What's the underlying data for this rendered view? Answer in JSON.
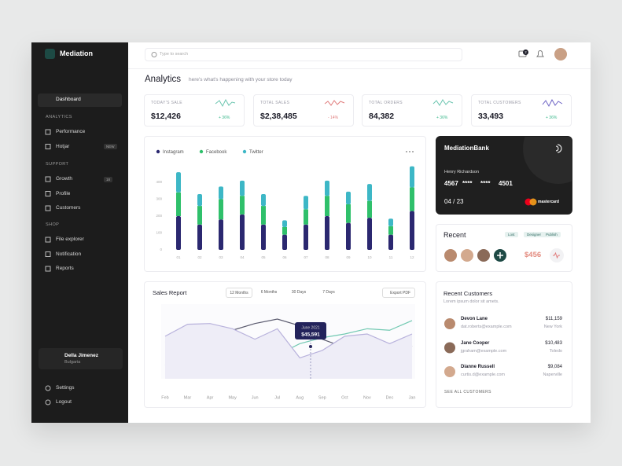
{
  "sidebar": {
    "brand": "Mediation",
    "dashboard": "Dashboard",
    "sections": [
      {
        "title": "ANALYTICS",
        "items": [
          {
            "label": "Performance"
          },
          {
            "label": "Hotjar",
            "badge": "NEW"
          }
        ]
      },
      {
        "title": "SUPPORT",
        "items": [
          {
            "label": "Growth",
            "badge": "18"
          },
          {
            "label": "Profile"
          },
          {
            "label": "Customers"
          }
        ]
      },
      {
        "title": "SHOP",
        "items": [
          {
            "label": "File explorer"
          },
          {
            "label": "Notification"
          },
          {
            "label": "Reports"
          }
        ]
      }
    ],
    "user": {
      "name": "Della Jimenez",
      "location": "Bulgaria"
    },
    "footer": [
      "Settings",
      "Logout"
    ]
  },
  "topbar": {
    "search_placeholder": "Type to search",
    "notifications": 2
  },
  "header": {
    "title": "Analytics",
    "subtitle": "here's what's happening with your store today"
  },
  "stats": [
    {
      "label": "TODAY'S SALE",
      "value": "$12,426",
      "change": "+ 36%"
    },
    {
      "label": "TOTAL SALES",
      "value": "$2,38,485",
      "change": "- 14%"
    },
    {
      "label": "TOTAL ORDERS",
      "value": "84,382",
      "change": "+ 36%"
    },
    {
      "label": "TOTAL CUSTOMERS",
      "value": "33,493",
      "change": "+ 36%"
    }
  ],
  "chart_data": [
    {
      "type": "bar",
      "stacked": true,
      "categories": [
        "01",
        "02",
        "03",
        "04",
        "05",
        "06",
        "07",
        "08",
        "09",
        "10",
        "11",
        "12"
      ],
      "series": [
        {
          "name": "Instagram",
          "color": "#2b2870",
          "values": [
            200,
            150,
            180,
            210,
            150,
            90,
            150,
            200,
            160,
            190,
            90,
            230
          ]
        },
        {
          "name": "Facebook",
          "color": "#2fc06b",
          "values": [
            140,
            110,
            120,
            110,
            110,
            45,
            90,
            120,
            110,
            100,
            50,
            140
          ]
        },
        {
          "name": "Twitter",
          "color": "#3db7c6",
          "values": [
            120,
            70,
            75,
            90,
            70,
            40,
            80,
            90,
            75,
            100,
            45,
            125
          ]
        }
      ],
      "ylim": [
        0,
        500
      ],
      "yticks": [
        0,
        100,
        200,
        300,
        400
      ],
      "grid": false
    },
    {
      "type": "line",
      "title": "Sales Report",
      "categories": [
        "Feb",
        "Mar",
        "Apr",
        "May",
        "Jun",
        "Jul",
        "Aug",
        "Sep",
        "Oct",
        "Nov",
        "Dec",
        "Jan"
      ],
      "series": [
        {
          "color": "#5a5a6e",
          "values": [
            49,
            53,
            60,
            65,
            74,
            80,
            71,
            53,
            42,
            37,
            26,
            44
          ]
        },
        {
          "color": "#72c9b2",
          "values": [
            18,
            28,
            37,
            23,
            16,
            32,
            47,
            55,
            60,
            67,
            65,
            78
          ]
        },
        {
          "color": "#b8b2dc",
          "values": [
            57,
            73,
            74,
            67,
            53,
            67,
            28,
            38,
            57,
            60,
            47,
            60
          ],
          "area": true
        }
      ],
      "ylim": [
        0,
        100
      ],
      "annotation": {
        "label": "June 2021",
        "value": "$45,591"
      }
    }
  ],
  "sales_report": {
    "tabs": [
      "12 Months",
      "6 Months",
      "30 Days",
      "7 Days"
    ],
    "export": "Export PDF"
  },
  "bank_card": {
    "name": "MediationBank",
    "holder": "Henry Richardson",
    "number": [
      "4567",
      "****",
      "****",
      "4501"
    ],
    "expiry": "04 / 23",
    "network": "mastercard"
  },
  "recent": {
    "title": "Recent",
    "tags": [
      "Lost",
      "Designer",
      "Publish"
    ],
    "amount": "$456"
  },
  "customers": {
    "title": "Recent Customers",
    "subtitle": "Lorem ipsum dolor sit amets.",
    "rows": [
      {
        "name": "Devon Lane",
        "email": "dat.roberts@example.com",
        "amount": "$11,159",
        "city": "New York"
      },
      {
        "name": "Jane Cooper",
        "email": "jgraham@example.com",
        "amount": "$10,483",
        "city": "Toledo"
      },
      {
        "name": "Dianne Russell",
        "email": "curtis.d@example.com",
        "amount": "$9,084",
        "city": "Naperville"
      }
    ],
    "link": "SEE ALL CUSTOMERS"
  }
}
